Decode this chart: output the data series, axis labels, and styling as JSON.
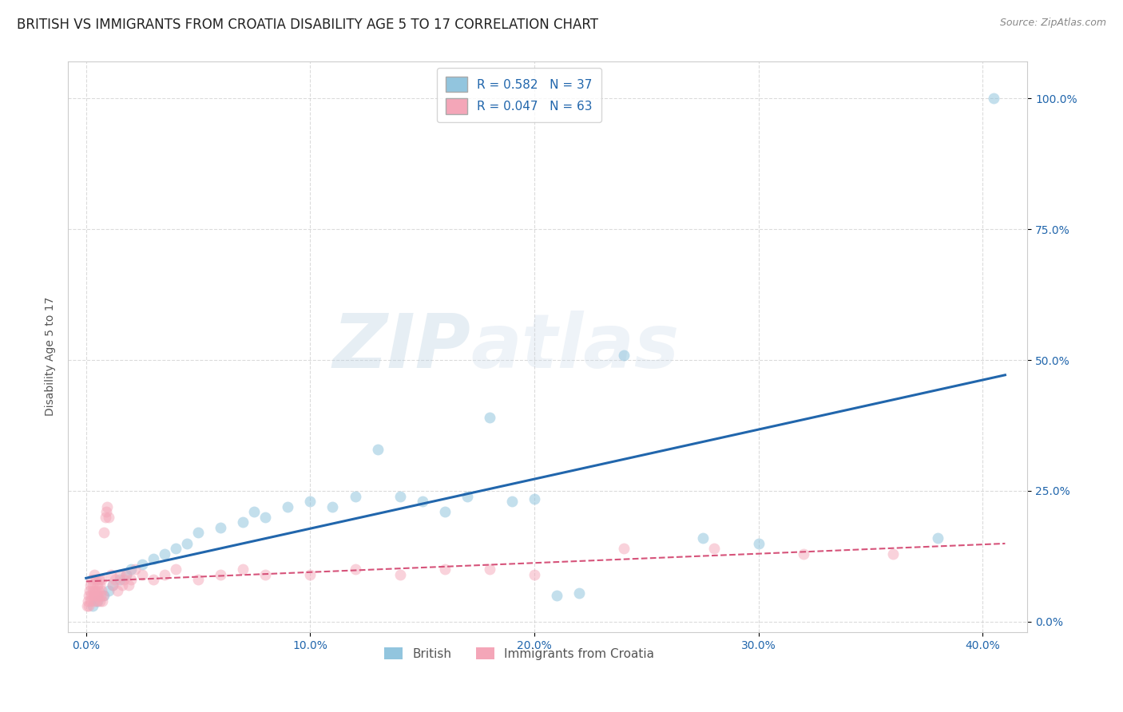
{
  "title": "BRITISH VS IMMIGRANTS FROM CROATIA DISABILITY AGE 5 TO 17 CORRELATION CHART",
  "source": "Source: ZipAtlas.com",
  "ylabel": "Disability Age 5 to 17",
  "x_tick_values": [
    0.0,
    10.0,
    20.0,
    30.0,
    40.0
  ],
  "y_tick_values": [
    0.0,
    25.0,
    50.0,
    75.0,
    100.0
  ],
  "xlim": [
    -0.8,
    42.0
  ],
  "ylim": [
    -2.0,
    107.0
  ],
  "british_R": 0.582,
  "british_N": 37,
  "croatia_R": 0.047,
  "croatia_N": 63,
  "british_color": "#92C5DE",
  "british_line_color": "#2166AC",
  "croatia_color": "#F4A6B8",
  "croatia_line_color": "#D6537A",
  "legend_british_label": "British",
  "legend_croatia_label": "Immigrants from Croatia",
  "watermark_zip": "ZIP",
  "watermark_atlas": "atlas",
  "british_x": [
    0.3,
    0.5,
    0.8,
    1.0,
    1.2,
    1.5,
    1.8,
    2.0,
    2.5,
    3.0,
    3.5,
    4.0,
    4.5,
    5.0,
    6.0,
    7.0,
    7.5,
    8.0,
    9.0,
    10.0,
    11.0,
    12.0,
    13.0,
    14.0,
    15.0,
    16.0,
    17.0,
    18.0,
    19.0,
    20.0,
    21.0,
    22.0,
    24.0,
    27.5,
    30.0,
    38.0,
    40.5
  ],
  "british_y": [
    3.0,
    4.0,
    5.0,
    6.0,
    7.0,
    8.0,
    9.0,
    10.0,
    11.0,
    12.0,
    13.0,
    14.0,
    15.0,
    17.0,
    18.0,
    19.0,
    21.0,
    20.0,
    22.0,
    23.0,
    22.0,
    24.0,
    33.0,
    24.0,
    23.0,
    21.0,
    24.0,
    39.0,
    23.0,
    23.5,
    5.0,
    5.5,
    51.0,
    16.0,
    15.0,
    16.0,
    100.0
  ],
  "croatia_x": [
    0.05,
    0.08,
    0.1,
    0.12,
    0.15,
    0.18,
    0.2,
    0.22,
    0.25,
    0.28,
    0.3,
    0.33,
    0.35,
    0.38,
    0.4,
    0.42,
    0.45,
    0.48,
    0.5,
    0.52,
    0.55,
    0.58,
    0.6,
    0.62,
    0.65,
    0.68,
    0.7,
    0.72,
    0.75,
    0.8,
    0.85,
    0.9,
    0.95,
    1.0,
    1.1,
    1.2,
    1.3,
    1.4,
    1.5,
    1.6,
    1.7,
    1.8,
    1.9,
    2.0,
    2.2,
    2.5,
    3.0,
    3.5,
    4.0,
    5.0,
    6.0,
    7.0,
    8.0,
    10.0,
    12.0,
    14.0,
    16.0,
    18.0,
    20.0,
    24.0,
    28.0,
    32.0,
    36.0
  ],
  "croatia_y": [
    3.0,
    4.0,
    5.0,
    3.0,
    6.0,
    4.0,
    7.0,
    5.0,
    8.0,
    6.0,
    7.0,
    5.0,
    9.0,
    4.0,
    6.0,
    5.0,
    8.0,
    4.0,
    7.0,
    5.0,
    6.0,
    8.0,
    4.0,
    7.0,
    5.0,
    6.0,
    8.0,
    4.0,
    5.0,
    17.0,
    20.0,
    21.0,
    22.0,
    20.0,
    9.0,
    7.0,
    8.0,
    6.0,
    9.0,
    7.0,
    8.0,
    9.0,
    7.0,
    8.0,
    10.0,
    9.0,
    8.0,
    9.0,
    10.0,
    8.0,
    9.0,
    10.0,
    9.0,
    9.0,
    10.0,
    9.0,
    10.0,
    10.0,
    9.0,
    14.0,
    14.0,
    13.0,
    13.0
  ],
  "circle_size": 100,
  "alpha_british": 0.55,
  "alpha_croatia": 0.5,
  "background_color": "#ffffff",
  "grid_color": "#cccccc",
  "title_fontsize": 12,
  "axis_label_fontsize": 10,
  "tick_label_fontsize": 10,
  "tick_label_color": "#2166AC"
}
